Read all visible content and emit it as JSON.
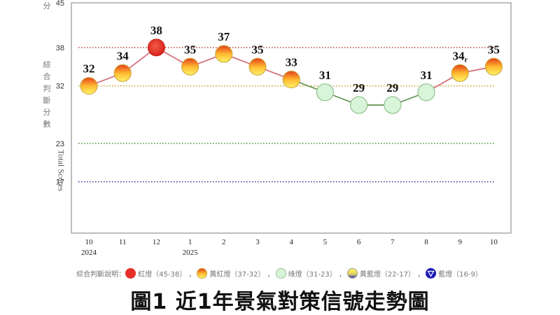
{
  "chart_data": {
    "type": "line",
    "title": "圖1  近1年景氣對策信號走勢圖",
    "ylabel_cn": "綜合判斷分數",
    "ylabel_top_fragment": "分",
    "ylabel_en": "Total Scores",
    "yticks": [
      45,
      38,
      32,
      23,
      17
    ],
    "ylim": [
      9,
      45
    ],
    "x": [
      "10",
      "11",
      "12",
      "1",
      "2",
      "3",
      "4",
      "5",
      "6",
      "7",
      "8",
      "9",
      "10"
    ],
    "year_labels": [
      {
        "index": 0,
        "label": "2024"
      },
      {
        "index": 3,
        "label": "2025"
      }
    ],
    "values": [
      32,
      34,
      38,
      35,
      37,
      35,
      33,
      31,
      29,
      29,
      31,
      34,
      35
    ],
    "value_labels": [
      "32",
      "34",
      "38",
      "35",
      "37",
      "35",
      "33",
      "31",
      "29",
      "29",
      "31",
      "34",
      "35"
    ],
    "value_label_suffix": {
      "11": "r"
    },
    "signals": [
      "yellow-red",
      "yellow-red",
      "red",
      "yellow-red",
      "yellow-red",
      "yellow-red",
      "yellow-red",
      "green",
      "green",
      "green",
      "green",
      "yellow-red",
      "yellow-red"
    ],
    "reference_lines": [
      {
        "y": 38,
        "color": "#c0504d"
      },
      {
        "y": 32,
        "color": "#c9a227"
      },
      {
        "y": 23,
        "color": "#4f9a3a"
      },
      {
        "y": 17,
        "color": "#3b3b9a"
      }
    ],
    "grid": false,
    "legend_position": "bottom"
  },
  "legend": {
    "prefix": "綜合判斷說明：",
    "items": [
      {
        "label": "紅燈（45-38）",
        "signal": "red",
        "sep": "，"
      },
      {
        "label": "黃紅燈（37-32）",
        "signal": "yellow-red",
        "sep": "，"
      },
      {
        "label": "綠燈（31-23）",
        "signal": "green",
        "sep": "，"
      },
      {
        "label": "黃藍燈（22-17）",
        "signal": "yellow-blue",
        "sep": "，"
      },
      {
        "label": "藍燈（16-9）",
        "signal": "blue",
        "sep": ""
      }
    ]
  },
  "colors": {
    "red": "#e8302a",
    "yellow_red_top": "#e84a1e",
    "yellow_red_bottom": "#fff36a",
    "green_fill": "#d9f5d9",
    "green_stroke": "#8fbf8f",
    "blue": "#1a1ab8",
    "line_red": "#d4707a",
    "line_green": "#6a9a5a",
    "frame": "#a0a0a0"
  }
}
